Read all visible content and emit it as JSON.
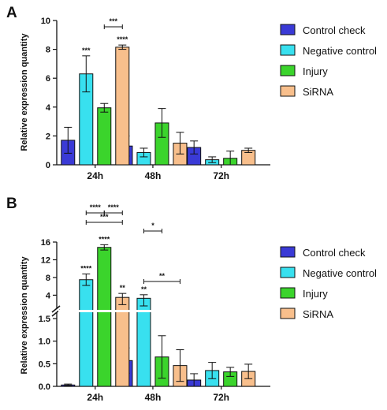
{
  "colors": {
    "Control check": "#3a3ad6",
    "Negative control": "#38e0ef",
    "Injury": "#3bd42c",
    "SiRNA": "#f8bf8c"
  },
  "chart_data": [
    {
      "panel": "A",
      "type": "bar",
      "ylabel": "Relative expression quantity",
      "categories": [
        "24h",
        "48h",
        "72h"
      ],
      "yticks": [
        "0",
        "2",
        "4",
        "6",
        "8",
        "10"
      ],
      "ylim": [
        0,
        10
      ],
      "legend_position": "right",
      "series": [
        {
          "name": "Control check",
          "values": [
            1.7,
            1.3,
            1.2
          ],
          "errors": [
            0.9,
            0.7,
            0.45
          ]
        },
        {
          "name": "Negative control",
          "values": [
            6.3,
            0.85,
            0.35
          ],
          "errors": [
            1.25,
            0.3,
            0.2
          ]
        },
        {
          "name": "Injury",
          "values": [
            3.95,
            2.9,
            0.45
          ],
          "errors": [
            0.3,
            1.0,
            0.5
          ]
        },
        {
          "name": "SiRNA",
          "values": [
            8.15,
            1.5,
            1.0
          ],
          "errors": [
            0.15,
            0.75,
            0.15
          ]
        }
      ],
      "annotations": [
        {
          "label": "***",
          "category": 0,
          "series": 1
        },
        {
          "label": "****",
          "category": 0,
          "series": 3
        },
        {
          "label": "***",
          "category": 0,
          "from_series": 2,
          "to_series": 3
        }
      ]
    },
    {
      "panel": "B",
      "type": "bar",
      "ylabel": "Relative expression quantity",
      "categories": [
        "24h",
        "48h",
        "72h"
      ],
      "yticks": [
        "0.0",
        "0.5",
        "1.0",
        "1.5",
        "4",
        "8",
        "12",
        "16"
      ],
      "ylim": [
        0,
        16
      ],
      "axis_break": [
        1.5,
        3
      ],
      "legend_position": "right",
      "series": [
        {
          "name": "Control check",
          "values": [
            0.03,
            0.57,
            0.14
          ],
          "errors": [
            0.02,
            0.28,
            0.14
          ]
        },
        {
          "name": "Negative control",
          "values": [
            7.5,
            3.3,
            0.35
          ],
          "errors": [
            1.3,
            0.8,
            0.18
          ]
        },
        {
          "name": "Injury",
          "values": [
            14.8,
            0.65,
            0.32
          ],
          "errors": [
            0.6,
            0.47,
            0.1
          ]
        },
        {
          "name": "SiRNA",
          "values": [
            3.5,
            0.46,
            0.33
          ],
          "errors": [
            0.9,
            0.35,
            0.16
          ]
        }
      ],
      "annotations": [
        {
          "label": "****",
          "category": 0,
          "series": 1
        },
        {
          "label": "****",
          "category": 0,
          "series": 2
        },
        {
          "label": "**",
          "category": 0,
          "series": 3
        },
        {
          "label": "**",
          "category": 1,
          "series": 1
        },
        {
          "label": "****",
          "category": 0,
          "from_series": 1,
          "to_series": 2
        },
        {
          "label": "****",
          "category": 0,
          "from_series": 2,
          "to_series": 3
        },
        {
          "label": "***",
          "category": 0,
          "from_series": 1,
          "to_series": 3
        },
        {
          "label": "*",
          "category": 1,
          "from_series": 1,
          "to_series": 2
        },
        {
          "label": "**",
          "category": 1,
          "from_series": 1,
          "to_series": 3
        }
      ]
    }
  ]
}
